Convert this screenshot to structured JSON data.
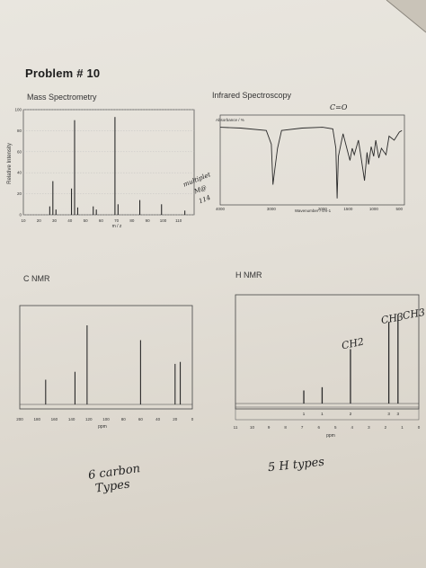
{
  "problem_title": "Problem # 10",
  "sections": {
    "mass_spec": "Mass Spectrometry",
    "ir": "Infrared Spectroscopy",
    "c_nmr": "C NMR",
    "h_nmr": "H NMR"
  },
  "handwriting": {
    "ms_note": [
      "multiplet",
      "M@",
      "114"
    ],
    "c_nmr_note": [
      "6 carbon",
      "Types"
    ],
    "h_nmr_note": "5 H types",
    "ir_note": "C=O",
    "peak_labels": [
      "CH2",
      "CH3",
      "CH3"
    ]
  },
  "colors": {
    "ink": "#222222",
    "paper": "#e6e2da",
    "plot_line": "#2a2a2a"
  },
  "chart_data": [
    {
      "type": "bar",
      "title": "Mass Spectrometry",
      "xlabel": "m / z",
      "ylabel": "Relative Intensity",
      "xlim": [
        10,
        120
      ],
      "ylim": [
        0,
        100
      ],
      "x_ticks": [
        10,
        20,
        30,
        40,
        50,
        60,
        70,
        80,
        90,
        100,
        110
      ],
      "y_ticks": [
        0,
        20,
        40,
        60,
        80,
        100
      ],
      "x": [
        27,
        29,
        31,
        41,
        43,
        45,
        55,
        57,
        69,
        71,
        85,
        99,
        114
      ],
      "values": [
        8,
        32,
        5,
        25,
        90,
        7,
        8,
        5,
        93,
        10,
        14,
        10,
        4
      ]
    },
    {
      "type": "line",
      "title": "Infrared Spectroscopy",
      "xlabel": "Wavenumber / cm-1",
      "ylabel": "Absorbance / %",
      "xlim": [
        4000,
        400
      ],
      "x_ticks": [
        4000,
        3000,
        2000,
        1500,
        1000,
        500
      ],
      "x": [
        4000,
        3600,
        3100,
        3000,
        2970,
        2930,
        2880,
        2800,
        2400,
        2000,
        1800,
        1740,
        1715,
        1690,
        1600,
        1465,
        1420,
        1380,
        1300,
        1250,
        1180,
        1130,
        1100,
        1050,
        1000,
        960,
        900,
        850,
        760,
        700,
        600,
        500,
        450
      ],
      "values": [
        96,
        95,
        92,
        75,
        25,
        45,
        70,
        92,
        95,
        96,
        94,
        70,
        8,
        60,
        88,
        55,
        70,
        62,
        80,
        60,
        30,
        65,
        50,
        72,
        60,
        80,
        58,
        70,
        62,
        85,
        80,
        90,
        92
      ]
    },
    {
      "type": "bar",
      "title": "C NMR",
      "xlabel": "ppm",
      "xlim": [
        200,
        0
      ],
      "x_ticks": [
        200,
        180,
        160,
        140,
        120,
        100,
        80,
        60,
        40,
        20,
        0
      ],
      "x": [
        170,
        136,
        122,
        60,
        20,
        14
      ],
      "values": [
        25,
        33,
        80,
        65,
        41,
        43
      ]
    },
    {
      "type": "bar",
      "title": "H NMR",
      "xlabel": "ppm",
      "xlim": [
        11,
        0
      ],
      "x_ticks": [
        11,
        10,
        9,
        8,
        7,
        6,
        5,
        4,
        3,
        2,
        1,
        0
      ],
      "x": [
        6.9,
        5.8,
        4.1,
        1.8,
        1.25
      ],
      "values": [
        12,
        15,
        50,
        75,
        82
      ],
      "integration": [
        "1",
        "1",
        "2",
        "3",
        "3"
      ]
    }
  ]
}
